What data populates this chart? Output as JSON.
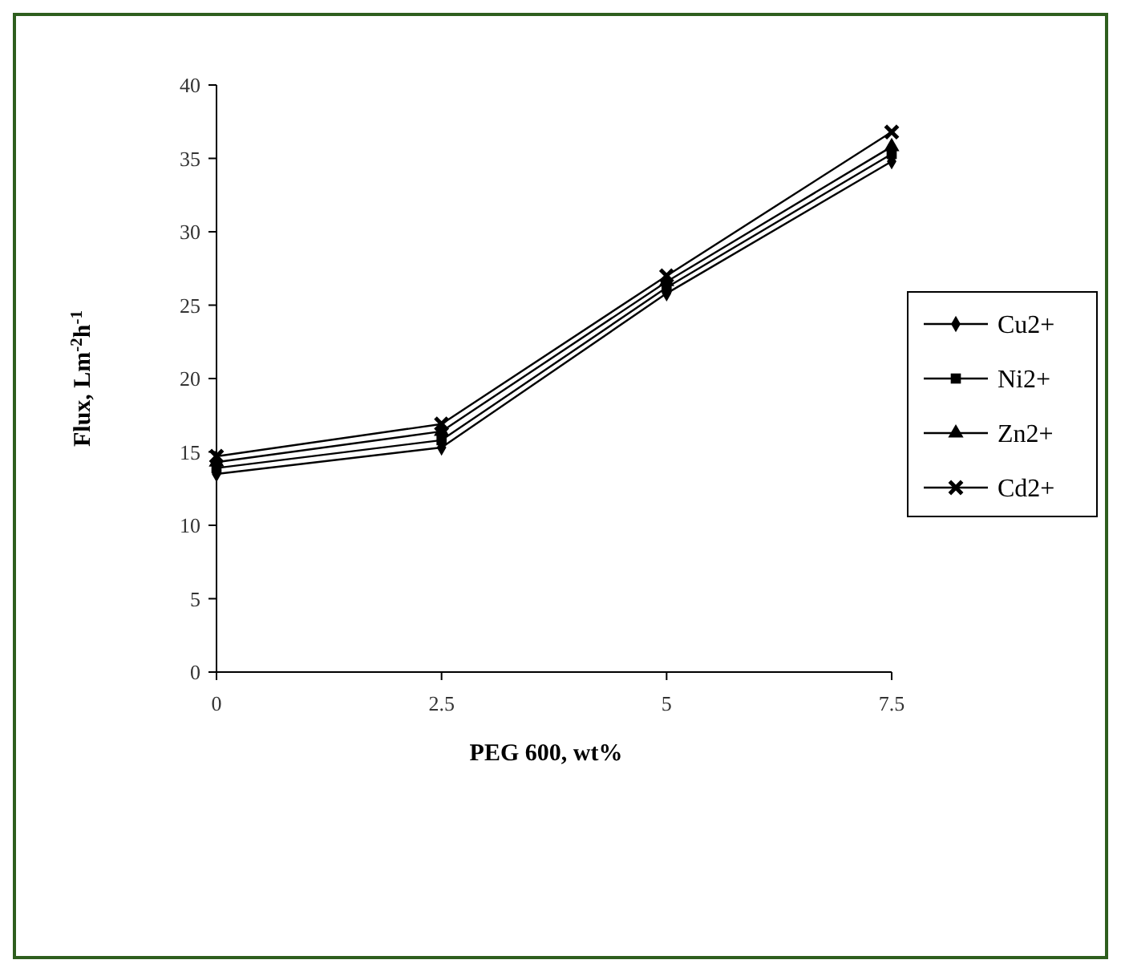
{
  "chart_data": {
    "type": "line",
    "xlabel": "PEG 600, wt%",
    "ylabel": "Flux, Lm$^{-2}$h$^{-1}$",
    "x": [
      0,
      2.5,
      5,
      7.5
    ],
    "xlim": [
      0,
      7.5
    ],
    "xticks": [
      0,
      2.5,
      5,
      7.5
    ],
    "ylim": [
      0,
      40
    ],
    "yticks": [
      0,
      5,
      10,
      15,
      20,
      25,
      30,
      35,
      40
    ],
    "grid": false,
    "legend": "right",
    "line_style": "solid",
    "series": [
      {
        "name": "Cu2+",
        "color": "#000000",
        "marker": "diamond",
        "values": [
          13.5,
          15.3,
          25.8,
          34.8
        ]
      },
      {
        "name": "Ni2+",
        "color": "#000000",
        "marker": "square",
        "values": [
          13.9,
          15.8,
          26.2,
          35.3
        ]
      },
      {
        "name": "Zn2+",
        "color": "#000000",
        "marker": "triangle",
        "values": [
          14.3,
          16.4,
          26.6,
          35.8
        ]
      },
      {
        "name": "Cd2+",
        "color": "#000000",
        "marker": "cross",
        "values": [
          14.7,
          16.9,
          27.0,
          36.8
        ]
      }
    ]
  }
}
